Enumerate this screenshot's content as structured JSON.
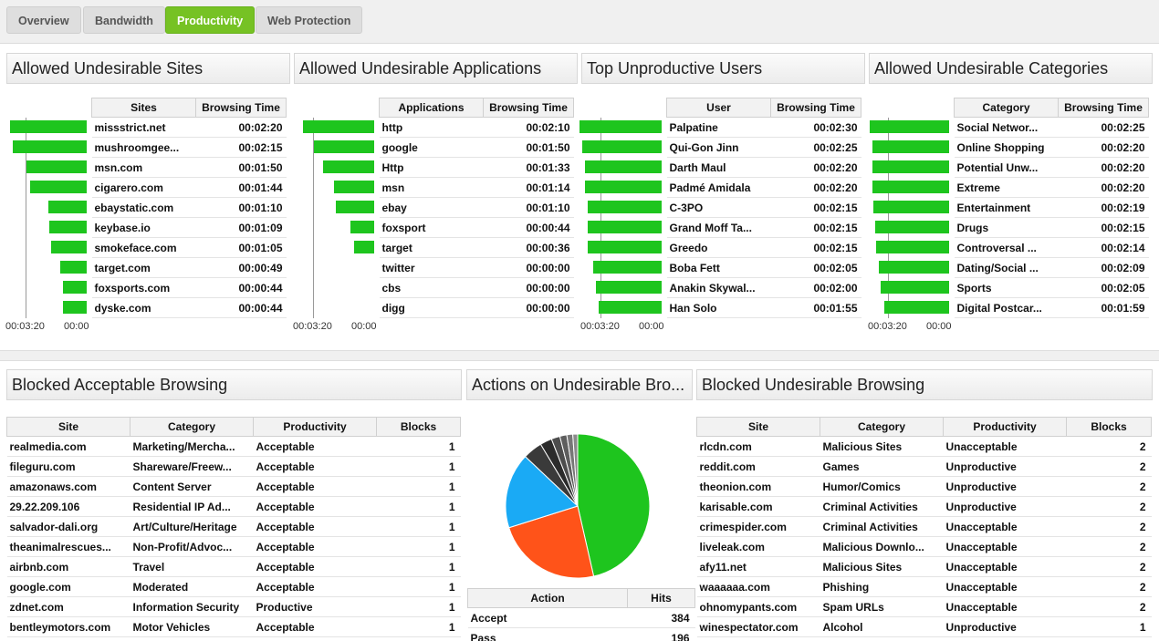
{
  "tabs": [
    {
      "label": "Overview",
      "active": false
    },
    {
      "label": "Bandwidth",
      "active": false
    },
    {
      "label": "Productivity",
      "active": true
    },
    {
      "label": "Web Protection",
      "active": false
    }
  ],
  "colors": {
    "accent": "#76c224",
    "bar": "#1ec51e"
  },
  "axis_labels": {
    "max": "00:03:20",
    "min": "00:00"
  },
  "panels": {
    "sites": {
      "title": "Allowed Undesirable Sites",
      "col1": "Sites",
      "col2": "Browsing Time",
      "rows": [
        {
          "name": "missstrict.net",
          "time": "00:02:20",
          "seconds": 140
        },
        {
          "name": "mushroomgee...",
          "time": "00:02:15",
          "seconds": 135
        },
        {
          "name": "msn.com",
          "time": "00:01:50",
          "seconds": 110
        },
        {
          "name": "cigarero.com",
          "time": "00:01:44",
          "seconds": 104
        },
        {
          "name": "ebaystatic.com",
          "time": "00:01:10",
          "seconds": 70
        },
        {
          "name": "keybase.io",
          "time": "00:01:09",
          "seconds": 69
        },
        {
          "name": "smokeface.com",
          "time": "00:01:05",
          "seconds": 65
        },
        {
          "name": "target.com",
          "time": "00:00:49",
          "seconds": 49
        },
        {
          "name": "foxsports.com",
          "time": "00:00:44",
          "seconds": 44
        },
        {
          "name": "dyske.com",
          "time": "00:00:44",
          "seconds": 44
        }
      ]
    },
    "apps": {
      "title": "Allowed Undesirable Applications",
      "col1": "Applications",
      "col2": "Browsing Time",
      "rows": [
        {
          "name": "http",
          "time": "00:02:10",
          "seconds": 130
        },
        {
          "name": "google",
          "time": "00:01:50",
          "seconds": 110
        },
        {
          "name": "Http",
          "time": "00:01:33",
          "seconds": 93
        },
        {
          "name": "msn",
          "time": "00:01:14",
          "seconds": 74
        },
        {
          "name": "ebay",
          "time": "00:01:10",
          "seconds": 70
        },
        {
          "name": "foxsport",
          "time": "00:00:44",
          "seconds": 44
        },
        {
          "name": "target",
          "time": "00:00:36",
          "seconds": 36
        },
        {
          "name": "twitter",
          "time": "00:00:00",
          "seconds": 0
        },
        {
          "name": "cbs",
          "time": "00:00:00",
          "seconds": 0
        },
        {
          "name": "digg",
          "time": "00:00:00",
          "seconds": 0
        }
      ]
    },
    "users": {
      "title": "Top Unproductive Users",
      "col1": "User",
      "col2": "Browsing Time",
      "rows": [
        {
          "name": "Palpatine",
          "time": "00:02:30",
          "seconds": 150
        },
        {
          "name": "Qui-Gon Jinn",
          "time": "00:02:25",
          "seconds": 145
        },
        {
          "name": "Darth Maul",
          "time": "00:02:20",
          "seconds": 140
        },
        {
          "name": "Padmé Amidala",
          "time": "00:02:20",
          "seconds": 140
        },
        {
          "name": "C-3PO",
          "time": "00:02:15",
          "seconds": 135
        },
        {
          "name": "Grand Moff Ta...",
          "time": "00:02:15",
          "seconds": 135
        },
        {
          "name": "Greedo",
          "time": "00:02:15",
          "seconds": 135
        },
        {
          "name": "Boba Fett",
          "time": "00:02:05",
          "seconds": 125
        },
        {
          "name": "Anakin Skywal...",
          "time": "00:02:00",
          "seconds": 120
        },
        {
          "name": "Han Solo",
          "time": "00:01:55",
          "seconds": 115
        }
      ]
    },
    "categories": {
      "title": "Allowed Undesirable Categories",
      "col1": "Category",
      "col2": "Browsing Time",
      "rows": [
        {
          "name": "Social Networ...",
          "time": "00:02:25",
          "seconds": 145
        },
        {
          "name": "Online Shopping",
          "time": "00:02:20",
          "seconds": 140
        },
        {
          "name": "Potential Unw...",
          "time": "00:02:20",
          "seconds": 140
        },
        {
          "name": "Extreme",
          "time": "00:02:20",
          "seconds": 140
        },
        {
          "name": "Entertainment",
          "time": "00:02:19",
          "seconds": 139
        },
        {
          "name": "Drugs",
          "time": "00:02:15",
          "seconds": 135
        },
        {
          "name": "Controversal ...",
          "time": "00:02:14",
          "seconds": 134
        },
        {
          "name": "Dating/Social ...",
          "time": "00:02:09",
          "seconds": 129
        },
        {
          "name": "Sports",
          "time": "00:02:05",
          "seconds": 125
        },
        {
          "name": "Digital Postcar...",
          "time": "00:01:59",
          "seconds": 119
        }
      ]
    }
  },
  "blocked_acceptable": {
    "title": "Blocked Acceptable Browsing",
    "headers": [
      "Site",
      "Category",
      "Productivity",
      "Blocks"
    ],
    "rows": [
      [
        "realmedia.com",
        "Marketing/Mercha...",
        "Acceptable",
        "1"
      ],
      [
        "fileguru.com",
        "Shareware/Freew...",
        "Acceptable",
        "1"
      ],
      [
        "amazonaws.com",
        "Content Server",
        "Acceptable",
        "1"
      ],
      [
        "29.22.209.106",
        "Residential IP Ad...",
        "Acceptable",
        "1"
      ],
      [
        "salvador-dali.org",
        "Art/Culture/Heritage",
        "Acceptable",
        "1"
      ],
      [
        "theanimalrescues...",
        "Non-Profit/Advoc...",
        "Acceptable",
        "1"
      ],
      [
        "airbnb.com",
        "Travel",
        "Acceptable",
        "1"
      ],
      [
        "google.com",
        "Moderated",
        "Acceptable",
        "1"
      ],
      [
        "zdnet.com",
        "Information Security",
        "Productive",
        "1"
      ],
      [
        "bentleymotors.com",
        "Motor Vehicles",
        "Acceptable",
        "1"
      ]
    ]
  },
  "actions": {
    "title": "Actions on Undesirable Bro...",
    "headers": [
      "Action",
      "Hits"
    ],
    "rows": [
      [
        "Accept",
        "384"
      ],
      [
        "Pass",
        "196"
      ]
    ],
    "pie": [
      {
        "label": "Accept",
        "value": 384,
        "color": "#1ec51e"
      },
      {
        "label": "Pass",
        "value": 196,
        "color": "#ff5319"
      },
      {
        "label": "",
        "value": 140,
        "color": "#1aaaf5"
      },
      {
        "label": "",
        "value": 36,
        "color": "#3a3a3a"
      },
      {
        "label": "",
        "value": 22,
        "color": "#2b2b2b"
      },
      {
        "label": "",
        "value": 16,
        "color": "#4d4d4d"
      },
      {
        "label": "",
        "value": 13,
        "color": "#5e5e5e"
      },
      {
        "label": "",
        "value": 11,
        "color": "#777777"
      },
      {
        "label": "",
        "value": 9,
        "color": "#8a8a8a"
      }
    ]
  },
  "blocked_undesirable": {
    "title": "Blocked Undesirable Browsing",
    "headers": [
      "Site",
      "Category",
      "Productivity",
      "Blocks"
    ],
    "rows": [
      [
        "rlcdn.com",
        "Malicious Sites",
        "Unacceptable",
        "2"
      ],
      [
        "reddit.com",
        "Games",
        "Unproductive",
        "2"
      ],
      [
        "theonion.com",
        "Humor/Comics",
        "Unproductive",
        "2"
      ],
      [
        "karisable.com",
        "Criminal Activities",
        "Unproductive",
        "2"
      ],
      [
        "crimespider.com",
        "Criminal Activities",
        "Unacceptable",
        "2"
      ],
      [
        "liveleak.com",
        "Malicious Downlo...",
        "Unacceptable",
        "2"
      ],
      [
        "afy11.net",
        "Malicious Sites",
        "Unacceptable",
        "2"
      ],
      [
        "waaaaaa.com",
        "Phishing",
        "Unacceptable",
        "2"
      ],
      [
        "ohnomypants.com",
        "Spam URLs",
        "Unacceptable",
        "2"
      ],
      [
        "winespectator.com",
        "Alcohol",
        "Unproductive",
        "1"
      ]
    ]
  }
}
